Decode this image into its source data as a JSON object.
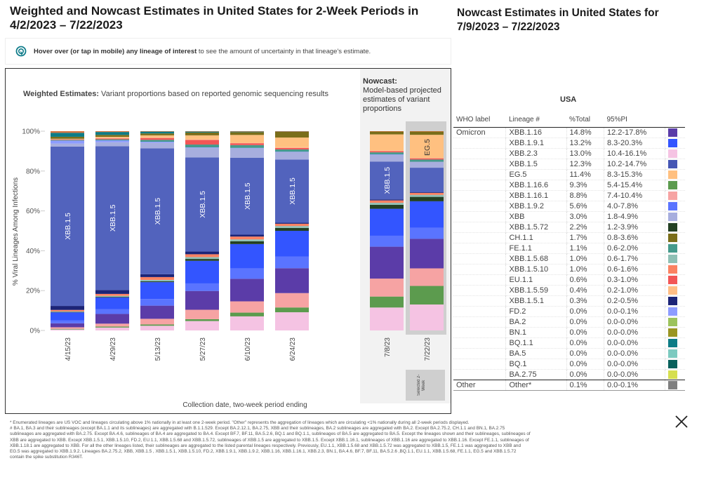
{
  "header": {
    "title": "Weighted and Nowcast Estimates in United States for 2-Week Periods in 4/2/2023 – 7/22/2023",
    "hint_bold": "Hover over (or tap in mobile) any lineage of interest",
    "hint_rest": " to see the amount of uncertainty in that lineage's estimate."
  },
  "weighted": {
    "subtitle_bold": "Weighted Estimates:",
    "subtitle_rest": " Variant proportions based on reported genomic sequencing results"
  },
  "nowcast": {
    "subtitle_bold": "Nowcast:",
    "subtitle_rest": "Model-based projected estimates of variant proportions",
    "selected_label": "Selected 2-Week"
  },
  "right_panel": {
    "title": "Nowcast Estimates in United States for 7/9/2023 – 7/22/2023",
    "region": "USA",
    "columns": [
      "WHO label",
      "Lineage #",
      "%Total",
      "95%PI"
    ],
    "rows": [
      {
        "who": "Omicron",
        "lineage": "XBB.1.16",
        "pct": "14.8%",
        "pi": "12.2-17.8%",
        "color": "#5b3ca8"
      },
      {
        "who": "",
        "lineage": "XBB.1.9.1",
        "pct": "13.2%",
        "pi": "8.3-20.3%",
        "color": "#3355ff"
      },
      {
        "who": "",
        "lineage": "XBB.2.3",
        "pct": "13.0%",
        "pi": "10.4-16.1%",
        "color": "#f5c3e3"
      },
      {
        "who": "",
        "lineage": "XBB.1.5",
        "pct": "12.3%",
        "pi": "10.2-14.7%",
        "color": "#4556b4"
      },
      {
        "who": "",
        "lineage": "EG.5",
        "pct": "11.4%",
        "pi": "8.3-15.3%",
        "color": "#ffc080"
      },
      {
        "who": "",
        "lineage": "XBB.1.16.6",
        "pct": "9.3%",
        "pi": "5.4-15.4%",
        "color": "#5c9b4e"
      },
      {
        "who": "",
        "lineage": "XBB.1.16.1",
        "pct": "8.8%",
        "pi": "7.4-10.4%",
        "color": "#f6a3a3"
      },
      {
        "who": "",
        "lineage": "XBB.1.9.2",
        "pct": "5.6%",
        "pi": "4.0-7.8%",
        "color": "#5a74ff"
      },
      {
        "who": "",
        "lineage": "XBB",
        "pct": "3.0%",
        "pi": "1.8-4.9%",
        "color": "#a7aede"
      },
      {
        "who": "",
        "lineage": "XBB.1.5.72",
        "pct": "2.2%",
        "pi": "1.2-3.9%",
        "color": "#234023"
      },
      {
        "who": "",
        "lineage": "CH.1.1",
        "pct": "1.7%",
        "pi": "0.8-3.6%",
        "color": "#7a6e1a"
      },
      {
        "who": "",
        "lineage": "FE.1.1",
        "pct": "1.1%",
        "pi": "0.6-2.0%",
        "color": "#459a8c"
      },
      {
        "who": "",
        "lineage": "XBB.1.5.68",
        "pct": "1.0%",
        "pi": "0.6-1.7%",
        "color": "#8fc0b5"
      },
      {
        "who": "",
        "lineage": "XBB.1.5.10",
        "pct": "1.0%",
        "pi": "0.6-1.6%",
        "color": "#fb8262"
      },
      {
        "who": "",
        "lineage": "EU.1.1",
        "pct": "0.6%",
        "pi": "0.3-1.0%",
        "color": "#f25656"
      },
      {
        "who": "",
        "lineage": "XBB.1.5.59",
        "pct": "0.4%",
        "pi": "0.2-1.0%",
        "color": "#ffbe85"
      },
      {
        "who": "",
        "lineage": "XBB.1.5.1",
        "pct": "0.3%",
        "pi": "0.2-0.5%",
        "color": "#1c2477"
      },
      {
        "who": "",
        "lineage": "FD.2",
        "pct": "0.0%",
        "pi": "0.0-0.1%",
        "color": "#8d9cff"
      },
      {
        "who": "",
        "lineage": "BA.2",
        "pct": "0.0%",
        "pi": "0.0-0.0%",
        "color": "#9cc35c"
      },
      {
        "who": "",
        "lineage": "BN.1",
        "pct": "0.0%",
        "pi": "0.0-0.0%",
        "color": "#9a9522"
      },
      {
        "who": "",
        "lineage": "BQ.1.1",
        "pct": "0.0%",
        "pi": "0.0-0.0%",
        "color": "#0d7c86"
      },
      {
        "who": "",
        "lineage": "BA.5",
        "pct": "0.0%",
        "pi": "0.0-0.0%",
        "color": "#7ccac0"
      },
      {
        "who": "",
        "lineage": "BQ.1",
        "pct": "0.0%",
        "pi": "0.0-0.0%",
        "color": "#08605c"
      },
      {
        "who": "",
        "lineage": "BA.2.75",
        "pct": "0.0%",
        "pi": "0.0-0.0%",
        "color": "#d6df4f"
      }
    ],
    "other_row": {
      "who": "Other",
      "lineage": "Other*",
      "pct": "0.1%",
      "pi": "0.0-0.1%",
      "color": "#7f7f7f"
    }
  },
  "footnotes": [
    "*     Enumerated lineages are US VOC and lineages circulating above 1% nationally in at least one 2-week period. \"Other\" represents the aggregation of lineages which are circulating <1% nationally during all 2-week periods displayed.",
    "#     BA.1, BA.3 and their sublineages (except BA.1.1 and its sublineages) are aggregated with B.1.1.529. Except BA.2.12.1, BA.2.75, XBB and their sublineages, BA.2 sublineages are aggregated with BA.2. Except BA.2.75.2, CH.1.1 and BN.1, BA.2.75",
    "sublineages are aggregated with BA.2.75. Except BA.4.6, sublineages of BA.4 are aggregated to BA.4. Except BF.7, BF.11, BA.5.2.6, BQ.1 and BQ.1.1, sublineages of BA.5 are aggregated to BA.5. Except the lineages shown and their sublineages, sublineages of",
    "XBB are aggregated to XBB. Except XBB.1.5.1, XBB.1.5.10, FD.2, EU.1.1, XBB.1.5.68 and XBB.1.5.72, sublineages of XBB.1.5 are aggregated to XBB.1.5. Except XBB.1.16.1, sublineages of XBB.1.16 are aggregated to XBB.1.16. Except FE.1.1, sublineages of",
    "XBB.1.18.1 are aggregated to XBB. For all the other lineages listed, their sublineages are aggregated to the listed parental lineages respectively. Previously, EU.1.1, XBB.1.5.68 and XBB.1.5.72 was aggregated to XBB.1.5, FE.1.1  was aggregated to XBB and",
    "EG.5 was aggregated to XBB.1.9.2. Lineages BA.2.75.2, XBB, XBB.1.5 , XBB.1.5.1, XBB.1.5.10, FD.2, XBB.1.9.1, XBB.1.9.2, XBB.1.16, XBB.1.16.1, XBB.2.3, BN.1, BA.4.6, BF.7, BF.11, BA.5.2.6 ,BQ.1.1, EU.1.1, XBB.1.5.68, FE.1.1, EG.5 and XBB.1.5.72",
    "contain the spike substitution R346T."
  ],
  "chart_data": {
    "type": "bar",
    "stacked": true,
    "title": "Weighted Estimates: Variant proportions based on reported genomic sequencing results",
    "xlabel": "Collection date, two-week period ending",
    "ylabel": "% Viral Lineages Among Infections",
    "ylim": [
      0,
      100
    ],
    "yticks": [
      "0%",
      "20%",
      "40%",
      "60%",
      "80%",
      "100%"
    ],
    "categories": [
      "4/15/23",
      "4/29/23",
      "5/13/23",
      "5/27/23",
      "6/10/23",
      "6/24/23",
      "7/8/23",
      "7/22/23"
    ],
    "nowcast_categories": [
      "7/8/23",
      "7/22/23"
    ],
    "selected_category": "7/22/23",
    "bar_labels": [
      "XBB.1.5",
      "XBB.1.5",
      "XBB.1.5",
      "XBB.1.5",
      "XBB.1.5",
      "XBB.1.5",
      "XBB.1.5",
      "EG.5"
    ],
    "series": [
      {
        "name": "XBB.2.3",
        "color": "#f5c3e3",
        "values": [
          0.5,
          1.5,
          2.5,
          5.0,
          7.5,
          9.5,
          11.5,
          13.0
        ]
      },
      {
        "name": "XBB.1.16.6",
        "color": "#5c9b4e",
        "values": [
          0.3,
          0.5,
          0.7,
          1.0,
          2.0,
          2.5,
          5.5,
          9.3
        ]
      },
      {
        "name": "XBB.1.16.1",
        "color": "#f6a3a3",
        "values": [
          0.8,
          1.5,
          3.0,
          5.0,
          6.0,
          7.5,
          9.0,
          8.8
        ]
      },
      {
        "name": "XBB.1.16",
        "color": "#5b3ca8",
        "values": [
          2.0,
          5.0,
          7.0,
          10.0,
          12.0,
          13.0,
          16.0,
          14.8
        ]
      },
      {
        "name": "XBB.1.9.2",
        "color": "#5a74ff",
        "values": [
          1.5,
          2.5,
          3.5,
          4.0,
          5.5,
          6.0,
          5.5,
          5.6
        ]
      },
      {
        "name": "XBB.1.9.1",
        "color": "#3355ff",
        "values": [
          4.0,
          6.0,
          9.0,
          12.0,
          13.0,
          13.5,
          13.5,
          13.2
        ]
      },
      {
        "name": "XBB.1.5.72",
        "color": "#234023",
        "values": [
          0.2,
          0.3,
          0.5,
          1.0,
          1.5,
          1.5,
          2.0,
          2.2
        ]
      },
      {
        "name": "XBB.1.5.68",
        "color": "#8fc0b5",
        "values": [
          0.3,
          0.5,
          0.7,
          1.0,
          1.0,
          1.0,
          1.0,
          1.0
        ]
      },
      {
        "name": "XBB.1.5.10",
        "color": "#fb8262",
        "values": [
          0.7,
          1.0,
          1.5,
          1.5,
          1.5,
          1.2,
          1.2,
          1.0
        ]
      },
      {
        "name": "XBB.1.5.1",
        "color": "#1c2477",
        "values": [
          2.0,
          2.0,
          1.5,
          1.5,
          1.0,
          0.5,
          0.5,
          0.3
        ]
      },
      {
        "name": "XBB.1.5",
        "color": "#5263bd",
        "values": [
          80.0,
          74.0,
          67.0,
          50.0,
          41.0,
          33.0,
          19.0,
          12.3
        ]
      },
      {
        "name": "XBB",
        "color": "#a7aede",
        "values": [
          1.5,
          2.0,
          3.0,
          5.0,
          5.0,
          4.0,
          3.5,
          3.0
        ]
      },
      {
        "name": "FD.2",
        "color": "#8d9cff",
        "values": [
          1.5,
          1.0,
          0.5,
          0.3,
          0.2,
          0.1,
          0.1,
          0.0
        ]
      },
      {
        "name": "FE.1.1",
        "color": "#459a8c",
        "values": [
          0.3,
          0.5,
          1.0,
          1.5,
          1.5,
          1.2,
          1.0,
          1.1
        ]
      },
      {
        "name": "EU.1.1",
        "color": "#f25656",
        "values": [
          0.3,
          0.5,
          1.0,
          2.5,
          1.0,
          0.8,
          0.6,
          0.6
        ]
      },
      {
        "name": "XBB.1.5.59",
        "color": "#ffbe85",
        "values": [
          0.2,
          0.3,
          0.4,
          0.4,
          0.4,
          0.4,
          0.4,
          0.4
        ]
      },
      {
        "name": "EG.5",
        "color": "#ffc080",
        "values": [
          0.1,
          0.5,
          1.0,
          2.0,
          4.0,
          5.0,
          8.0,
          11.4
        ]
      },
      {
        "name": "CH.1.1",
        "color": "#7a6e1a",
        "values": [
          1.0,
          1.0,
          1.0,
          1.5,
          1.5,
          3.0,
          1.5,
          1.7
        ]
      },
      {
        "name": "BQ.1.1",
        "color": "#0d7c86",
        "values": [
          2.0,
          1.5,
          1.0,
          0.5,
          0.3,
          0.2,
          0.0,
          0.0
        ]
      },
      {
        "name": "Other",
        "color": "#d7703a",
        "values": [
          0.8,
          0.4,
          0.2,
          0.2,
          0.2,
          0.1,
          0.1,
          0.1
        ]
      }
    ]
  }
}
